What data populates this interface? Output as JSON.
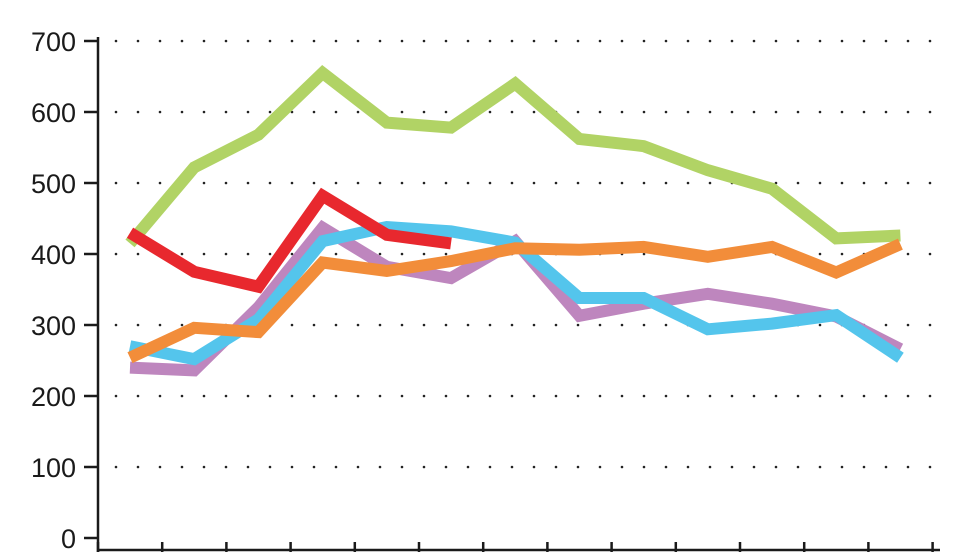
{
  "chart_data": {
    "type": "line",
    "title": "",
    "xlabel": "",
    "ylabel": "",
    "ylim": [
      0,
      700
    ],
    "yticks": [
      0,
      100,
      200,
      300,
      400,
      500,
      600,
      700
    ],
    "grid": "horizontal-dotted",
    "x_positions": 13,
    "series": [
      {
        "color": "#b1d365",
        "values": [
          415,
          522,
          568,
          655,
          585,
          578,
          640,
          562,
          552,
          518,
          492,
          422,
          426
        ]
      },
      {
        "color": "#be86be",
        "values": [
          240,
          236,
          325,
          437,
          382,
          366,
          418,
          313,
          330,
          344,
          330,
          312,
          266
        ]
      },
      {
        "color": "#54c5ec",
        "values": [
          270,
          252,
          308,
          418,
          438,
          432,
          416,
          338,
          338,
          294,
          302,
          314,
          254
        ]
      },
      {
        "color": "#f28d3a",
        "values": [
          254,
          296,
          290,
          388,
          376,
          390,
          408,
          406,
          410,
          396,
          410,
          374,
          414
        ]
      },
      {
        "color": "#e8282e",
        "values": [
          430,
          375,
          354,
          482,
          427,
          415
        ]
      }
    ]
  }
}
